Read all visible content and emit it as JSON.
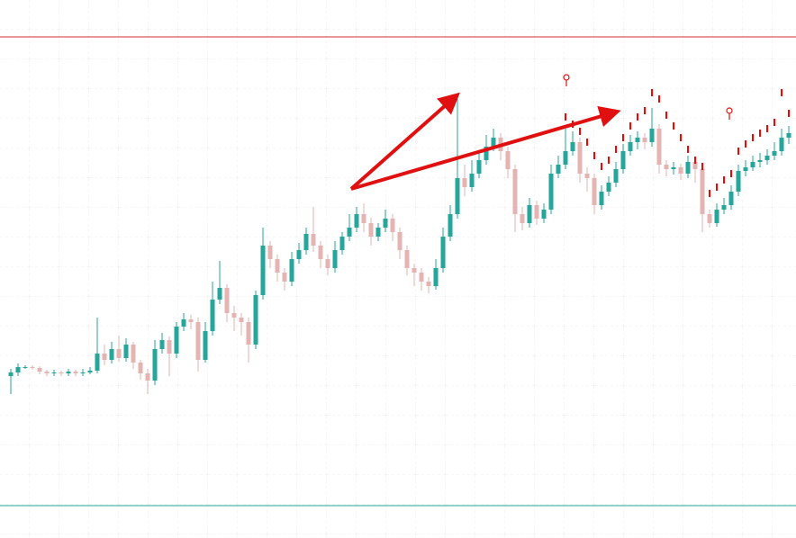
{
  "chart_data": {
    "type": "candlestick",
    "ylim": [
      0,
      598
    ],
    "up_color": "#26a69a",
    "down_color": "#e6b3b3",
    "open": [
      180,
      184,
      190,
      190,
      189,
      185,
      183,
      184,
      183,
      185,
      183,
      184,
      186,
      205,
      198,
      210,
      200,
      215,
      195,
      183,
      175,
      210,
      220,
      205,
      235,
      243,
      240,
      198,
      230,
      265,
      278,
      250,
      245,
      240,
      215,
      270,
      325,
      310,
      295,
      285,
      310,
      320,
      338,
      325,
      310,
      300,
      320,
      335,
      345,
      360,
      350,
      335,
      345,
      355,
      340,
      320,
      300,
      295,
      285,
      280,
      300,
      335,
      360,
      400,
      390,
      405,
      420,
      435,
      445,
      430,
      410,
      360,
      350,
      370,
      355,
      365,
      405,
      415,
      430,
      440,
      405,
      400,
      370,
      385,
      395,
      410,
      430,
      440,
      445,
      440,
      455,
      415,
      410,
      412,
      405,
      418,
      410,
      360,
      350,
      365,
      370,
      385,
      408,
      412,
      418,
      420,
      425,
      430,
      445
    ],
    "high": [
      188,
      194,
      192,
      192,
      191,
      187,
      187,
      186,
      188,
      187,
      188,
      190,
      245,
      215,
      218,
      225,
      222,
      218,
      198,
      188,
      220,
      228,
      224,
      240,
      250,
      248,
      245,
      240,
      285,
      308,
      282,
      258,
      250,
      245,
      275,
      345,
      330,
      315,
      300,
      318,
      328,
      345,
      368,
      330,
      315,
      330,
      340,
      360,
      368,
      372,
      356,
      350,
      365,
      360,
      345,
      325,
      305,
      300,
      290,
      310,
      345,
      370,
      493,
      415,
      420,
      430,
      448,
      455,
      450,
      435,
      415,
      368,
      378,
      375,
      372,
      415,
      425,
      455,
      452,
      445,
      412,
      405,
      392,
      402,
      418,
      438,
      448,
      452,
      450,
      478,
      460,
      420,
      418,
      416,
      425,
      422,
      414,
      365,
      372,
      378,
      392,
      415,
      420,
      425,
      428,
      432,
      440,
      455,
      458
    ],
    "low": [
      160,
      180,
      188,
      187,
      182,
      180,
      180,
      180,
      180,
      180,
      180,
      182,
      183,
      192,
      194,
      196,
      196,
      188,
      176,
      160,
      170,
      205,
      180,
      200,
      230,
      232,
      185,
      195,
      225,
      260,
      240,
      230,
      225,
      195,
      210,
      265,
      300,
      285,
      275,
      280,
      305,
      315,
      318,
      300,
      292,
      295,
      315,
      330,
      340,
      340,
      325,
      330,
      340,
      330,
      310,
      292,
      280,
      275,
      272,
      276,
      295,
      330,
      355,
      380,
      385,
      400,
      415,
      430,
      420,
      400,
      340,
      342,
      345,
      348,
      350,
      360,
      400,
      410,
      425,
      395,
      385,
      360,
      365,
      380,
      390,
      405,
      425,
      432,
      432,
      435,
      405,
      402,
      404,
      398,
      400,
      395,
      340,
      345,
      346,
      360,
      365,
      380,
      402,
      408,
      412,
      415,
      420,
      425,
      438
    ],
    "close": [
      184,
      190,
      190,
      189,
      185,
      183,
      184,
      183,
      185,
      183,
      184,
      186,
      205,
      198,
      210,
      200,
      215,
      195,
      183,
      175,
      210,
      220,
      205,
      235,
      243,
      240,
      198,
      230,
      265,
      278,
      250,
      245,
      240,
      215,
      270,
      325,
      310,
      295,
      285,
      310,
      320,
      338,
      325,
      310,
      300,
      320,
      335,
      345,
      360,
      350,
      335,
      345,
      355,
      340,
      320,
      300,
      295,
      285,
      280,
      300,
      335,
      360,
      400,
      390,
      405,
      420,
      435,
      445,
      430,
      410,
      360,
      350,
      370,
      355,
      365,
      405,
      415,
      430,
      440,
      405,
      400,
      370,
      385,
      395,
      410,
      430,
      440,
      445,
      440,
      455,
      415,
      410,
      412,
      405,
      418,
      410,
      360,
      350,
      365,
      370,
      385,
      408,
      412,
      418,
      420,
      425,
      430,
      445,
      450
    ],
    "sar": {
      "color": "#ff0000",
      "values": [
        null,
        null,
        null,
        null,
        null,
        null,
        null,
        null,
        null,
        null,
        null,
        null,
        null,
        null,
        null,
        null,
        null,
        null,
        null,
        null,
        null,
        null,
        null,
        null,
        null,
        null,
        null,
        null,
        null,
        null,
        null,
        null,
        null,
        null,
        null,
        null,
        null,
        null,
        null,
        null,
        null,
        null,
        null,
        null,
        null,
        null,
        null,
        null,
        null,
        null,
        null,
        null,
        null,
        null,
        null,
        null,
        null,
        null,
        null,
        null,
        null,
        null,
        null,
        null,
        null,
        null,
        null,
        null,
        null,
        null,
        null,
        null,
        null,
        null,
        null,
        null,
        null,
        468,
        460,
        452,
        440,
        425,
        413,
        420,
        432,
        445,
        458,
        468,
        475,
        495,
        488,
        470,
        458,
        445,
        432,
        420,
        413,
        383,
        390,
        398,
        405,
        430,
        438,
        445,
        450,
        455,
        462,
        495,
        472
      ]
    },
    "levels": [
      {
        "value": 557,
        "color": "#d32f2f"
      },
      {
        "value": 36,
        "color": "#26a69a"
      }
    ]
  }
}
